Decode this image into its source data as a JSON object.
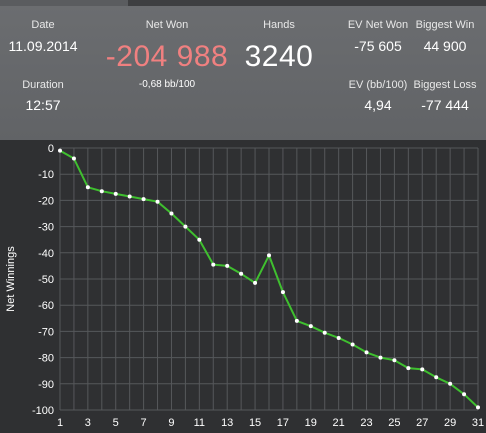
{
  "colors": {
    "panel_bg": "#666769",
    "chart_bg": "#2f3032",
    "grid": "#56585b",
    "line": "#3fbf2f",
    "point": "#ffffff",
    "negative": "#f08080",
    "text": "#ffffff"
  },
  "stats": {
    "date_label": "Date",
    "date_value": "11.09.2014",
    "net_won_label": "Net Won",
    "net_won_value": "-204 988",
    "net_won_sub": "-0,68 bb/100",
    "hands_label": "Hands",
    "hands_value": "3240",
    "ev_net_won_label": "EV Net Won",
    "ev_net_won_value": "-75 605",
    "biggest_win_label": "Biggest Win",
    "biggest_win_value": "44 900",
    "duration_label": "Duration",
    "duration_value": "12:57",
    "ev_bb_label": "EV (bb/100)",
    "ev_bb_value": "4,94",
    "biggest_loss_label": "Biggest Loss",
    "biggest_loss_value": "-77 444"
  },
  "chart_data": {
    "type": "line",
    "ylabel": "Net Winnings",
    "xlabel": "",
    "ylim": [
      -100,
      0
    ],
    "xlim": [
      1,
      31
    ],
    "y_ticks": [
      0,
      -10,
      -20,
      -30,
      -40,
      -50,
      -60,
      -70,
      -80,
      -90,
      -100
    ],
    "x_ticks": [
      1,
      3,
      5,
      7,
      9,
      11,
      13,
      15,
      17,
      19,
      21,
      23,
      25,
      27,
      29,
      31
    ],
    "grid": true,
    "series": [
      {
        "x": [
          1,
          2,
          3,
          4,
          5,
          6,
          7,
          8,
          9,
          10,
          11,
          12,
          13,
          14,
          15,
          16,
          17,
          18,
          19,
          20,
          21,
          22,
          23,
          24,
          25,
          26,
          27,
          28,
          29,
          30,
          31
        ],
        "y": [
          -1,
          -4,
          -15,
          -16.5,
          -17.5,
          -18.5,
          -19.5,
          -20.5,
          -25,
          -30,
          -35,
          -44.5,
          -45,
          -48,
          -51.5,
          -41,
          -55,
          -66,
          -68,
          -70.5,
          -72.5,
          -75,
          -78,
          -80,
          -81,
          -84,
          -84.5,
          -87.5,
          -90,
          -94,
          -99
        ]
      }
    ]
  }
}
